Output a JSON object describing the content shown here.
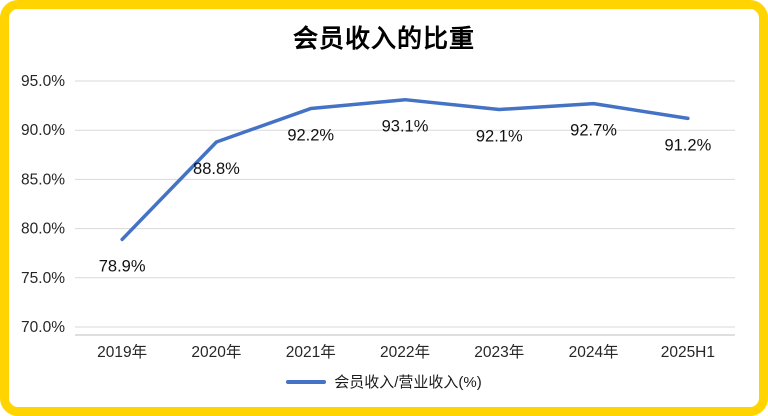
{
  "colors": {
    "border": "#FFD400",
    "line": "#4472C4",
    "grid": "#D9D9D9",
    "axis_line": "#BFBFBF",
    "tick_text": "#262626",
    "data_label_text": "#111111"
  },
  "chart_data": {
    "type": "line",
    "title": "会员收入的比重",
    "categories": [
      "2019年",
      "2020年",
      "2021年",
      "2022年",
      "2023年",
      "2024年",
      "2025H1"
    ],
    "series": [
      {
        "name": "会员收入/营业收入(%)",
        "values": [
          78.9,
          88.8,
          92.2,
          93.1,
          92.1,
          92.7,
          91.2
        ]
      }
    ],
    "data_labels": [
      "78.9%",
      "88.8%",
      "92.2%",
      "93.1%",
      "92.1%",
      "92.7%",
      "91.2%"
    ],
    "yticks": [
      "95.0%",
      "90.0%",
      "85.0%",
      "80.0%",
      "75.0%",
      "70.0%"
    ],
    "ylim": [
      70,
      95
    ],
    "grid": true,
    "legend": "会员收入/营业收入(%)",
    "legend_position": "bottom"
  }
}
